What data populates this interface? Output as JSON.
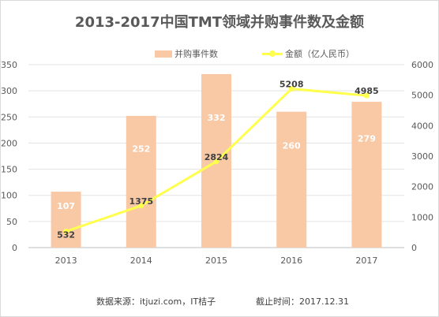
{
  "chart_data": {
    "type": "bar",
    "title": "2013-2017中国TMT领域并购事件数及金额",
    "categories": [
      "2013",
      "2014",
      "2015",
      "2016",
      "2017"
    ],
    "series": [
      {
        "name": "并购事件数",
        "type": "bar",
        "axis": "left",
        "values": [
          107,
          252,
          332,
          260,
          279
        ]
      },
      {
        "name": "金额（亿人民币）",
        "type": "line",
        "axis": "right",
        "values": [
          532,
          1375,
          2824,
          5208,
          4985
        ]
      }
    ],
    "ylim_left": [
      0,
      350
    ],
    "yticks_left": [
      "0",
      "50",
      "100",
      "150",
      "200",
      "250",
      "300",
      "350"
    ],
    "ylim_right": [
      0,
      6000
    ],
    "yticks_right": [
      "0",
      "1000",
      "2000",
      "3000",
      "4000",
      "5000",
      "6000"
    ],
    "grid": true,
    "legend_position": "top-right",
    "colors": {
      "bar": "#f9c9a6",
      "line": "#ffff4d",
      "bar_label": "#ffffff",
      "line_label": "#404040"
    }
  },
  "footer": {
    "source": "数据来源：itjuzi.com，IT桔子",
    "cutoff": "截止时间：2017.12.31"
  }
}
